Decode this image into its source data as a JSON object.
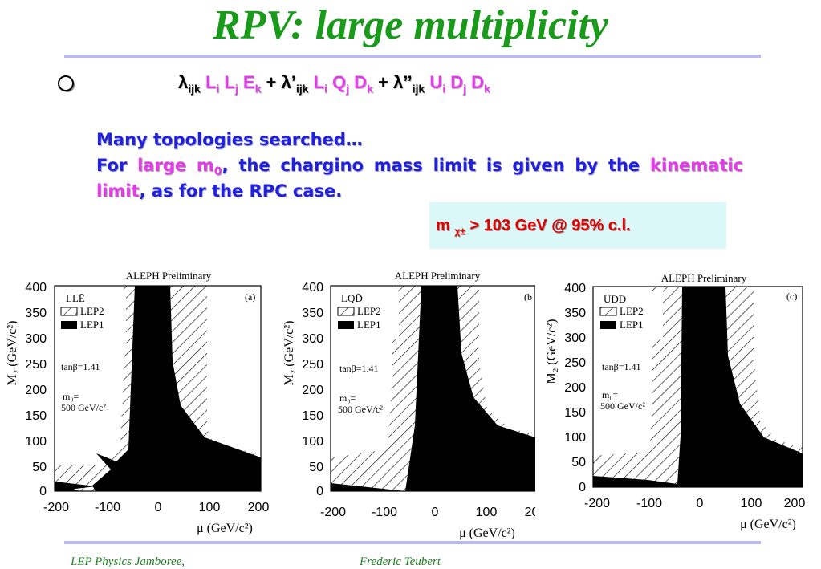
{
  "title": "RPV: large multiplicity",
  "formula": {
    "t1_sym": "λ",
    "t1_sub": "ijk",
    "t1_f1": "L",
    "t1_f1s": "i",
    "t1_f2": "L",
    "t1_f2s": "j",
    "t1_f3": "E",
    "t1_f3s": "k",
    "plus": "+",
    "t2_sym": "λ’",
    "t2_sub": "ijk",
    "t2_f1": "L",
    "t2_f1s": "i",
    "t2_f2": "Q",
    "t2_f2s": "j",
    "t2_f3": "D",
    "t2_f3s": "k",
    "t3_sym": "λ’’",
    "t3_sub": "ijk",
    "t3_f1": "U",
    "t3_f1s": "i",
    "t3_f2": "D",
    "t3_f2s": "j",
    "t3_f3": "D",
    "t3_f3s": "k"
  },
  "text": {
    "line1": "Many topologies searched…",
    "for": "For",
    "large": "large m",
    "large_sub": "0",
    "mid": ", the chargino mass limit is given by the",
    "kinematic": "kinematic",
    "limit": "limit",
    "end": ", as for the RPC case."
  },
  "result": {
    "m": "m",
    "sub": "χ±",
    "rest": " >  103 GeV  @ 95% c.l."
  },
  "plots": [
    {
      "id": "a",
      "header": "ALEPH Preliminary",
      "legend_title": "LLĒ",
      "panel": "(a)"
    },
    {
      "id": "b",
      "header": "ALEPH Preliminary",
      "legend_title": "LQD̄",
      "panel": "(b"
    },
    {
      "id": "c",
      "header": "ALEPH Preliminary",
      "legend_title": "ŪDD",
      "panel": "(c)"
    }
  ],
  "plot_common": {
    "legend_lep2": "LEP2",
    "legend_lep1": "LEP1",
    "tanb": "tanβ=1.41",
    "m0_label": "m₀=",
    "m0_value": "500 GeV/c²",
    "ylabel": "M₂ (GeV/c²)",
    "xlabel": "μ (GeV/c²)",
    "yticks": [
      "400",
      "350",
      "300",
      "250",
      "200",
      "150",
      "100",
      "50",
      "0"
    ],
    "xticks": [
      "-200",
      "-100",
      "0",
      "100",
      "200"
    ]
  },
  "footer": {
    "left": "LEP Physics Jamboree,",
    "right": "Frederic Teubert"
  },
  "colors": {
    "title": "#1a9a1a",
    "body_text": "#2020e0",
    "highlight": "#e23be8",
    "result_text": "#e00000",
    "result_bg": "#dbf7f7",
    "rule": "#b9b9f0"
  }
}
